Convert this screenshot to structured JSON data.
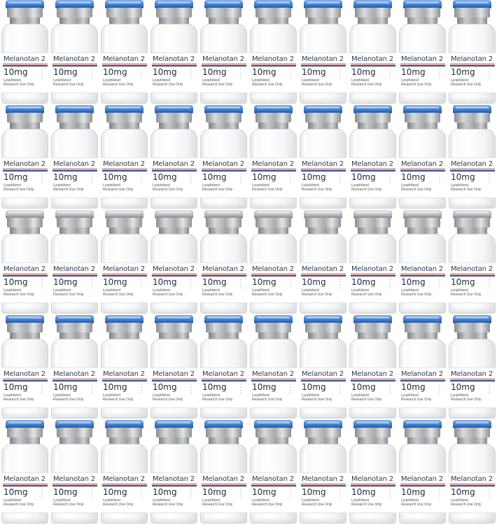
{
  "product": {
    "name": "Melanotan 2",
    "dose": "10mg",
    "form": "Lyophilized",
    "use": "Research Use Only"
  },
  "layout_grid": {
    "rows": 5,
    "cols": 10
  },
  "cap_rows": [
    {
      "row": 1,
      "cap": "blue"
    },
    {
      "row": 2,
      "cap": "blue"
    },
    {
      "row": 3,
      "cap": "gray"
    },
    {
      "row": 4,
      "cap": "blue"
    },
    {
      "row": 5,
      "cap": "blue"
    }
  ],
  "colors": {
    "blue_cap": "#3f7fd4",
    "gray_cap": "#b9bcbf",
    "stripe_red": "#c0392b",
    "stripe_blue": "#2c4a8c"
  }
}
